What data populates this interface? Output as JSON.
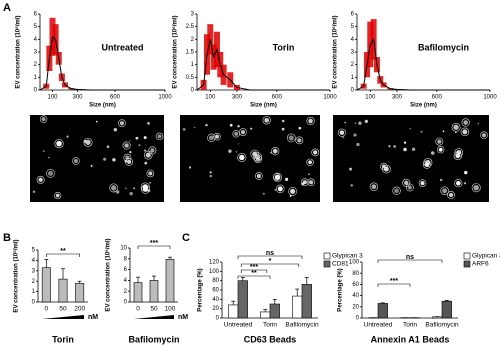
{
  "panel_labels": [
    "A",
    "B",
    "C"
  ],
  "chart_data": [
    {
      "type": "line",
      "title": "Untreated",
      "xlabel": "Size (nm)",
      "ylabel": "EV concentration (10⁶/ml)",
      "x": [
        0,
        50,
        75,
        100,
        125,
        150,
        175,
        200,
        250,
        300,
        400,
        500,
        600,
        800,
        1000
      ],
      "series": [
        {
          "color": "#000000",
          "error_color": "#e00000",
          "values": [
            0,
            0.3,
            2.5,
            4.2,
            4.0,
            2.5,
            1.0,
            0.4,
            0.1,
            0.05,
            0,
            0,
            0,
            0,
            0
          ],
          "errors": [
            0,
            0.2,
            1,
            1.5,
            1.2,
            0.5,
            0.3,
            0.2,
            0.05,
            0,
            0,
            0,
            0,
            0,
            0
          ]
        }
      ],
      "xlim": [
        0,
        1000
      ],
      "xticks": [
        100,
        300,
        600,
        1000
      ],
      "ylim": [
        0,
        6
      ],
      "yticks": [
        0,
        1,
        2,
        3,
        4,
        5,
        6
      ]
    },
    {
      "type": "line",
      "title": "Torin",
      "xlabel": "Size (nm)",
      "ylabel": "EV concentration (10⁶/ml)",
      "x": [
        0,
        50,
        75,
        100,
        125,
        150,
        175,
        200,
        250,
        300,
        400,
        500,
        600,
        800,
        1000
      ],
      "series": [
        {
          "color": "#000000",
          "error_color": "#e00000",
          "values": [
            0,
            0.2,
            1.4,
            2.0,
            1.3,
            1.6,
            1.0,
            0.6,
            0.4,
            0.1,
            0,
            0,
            0,
            0,
            0
          ],
          "errors": [
            0,
            0.2,
            0.8,
            0.6,
            0.5,
            0.7,
            0.5,
            0.4,
            0.3,
            0.1,
            0,
            0,
            0,
            0,
            0
          ]
        }
      ],
      "xlim": [
        0,
        1000
      ],
      "xticks": [
        100,
        300,
        600,
        1000
      ],
      "ylim": [
        0,
        3
      ],
      "yticks": [
        0,
        0.5,
        1,
        1.5,
        2,
        2.5,
        3
      ]
    },
    {
      "type": "line",
      "title": "Bafilomycin",
      "xlabel": "Size (nm)",
      "ylabel": "EV concentration (10⁶/ml)",
      "x": [
        0,
        50,
        75,
        100,
        125,
        150,
        175,
        200,
        250,
        300,
        400,
        500,
        600,
        800,
        1000
      ],
      "series": [
        {
          "color": "#000000",
          "error_color": "#e00000",
          "values": [
            0,
            0.3,
            2.0,
            3.6,
            4.0,
            2.0,
            0.8,
            0.4,
            0.1,
            0.05,
            0,
            0,
            0,
            0,
            0
          ],
          "errors": [
            0,
            0.2,
            1,
            1.8,
            1.6,
            0.6,
            0.3,
            0.2,
            0.05,
            0,
            0,
            0,
            0,
            0,
            0
          ]
        }
      ],
      "xlim": [
        0,
        1000
      ],
      "xticks": [
        100,
        300,
        600,
        1000
      ],
      "ylim": [
        0,
        6
      ],
      "yticks": [
        0,
        1,
        2,
        3,
        4,
        5,
        6
      ]
    },
    {
      "type": "bar",
      "title": "Torin",
      "xlabel": "nM",
      "ylabel": "EV concentration (10⁶/ml)",
      "categories": [
        "0",
        "50",
        "200"
      ],
      "values": [
        3.3,
        2.2,
        1.8
      ],
      "errors": [
        0.8,
        1.0,
        0.2
      ],
      "color": "#bbbbbb",
      "ylim": [
        0,
        5
      ],
      "yticks": [
        0,
        1,
        2,
        3,
        4,
        5
      ],
      "annotations": [
        "**"
      ]
    },
    {
      "type": "bar",
      "title": "Bafilomycin",
      "xlabel": "nM",
      "ylabel": "EV concentration (10⁶/ml)",
      "categories": [
        "0",
        "50",
        "100"
      ],
      "values": [
        3.6,
        4.0,
        7.9
      ],
      "errors": [
        1.0,
        0.8,
        0.4
      ],
      "color": "#bbbbbb",
      "ylim": [
        0,
        10
      ],
      "yticks": [
        0,
        2,
        4,
        6,
        8,
        10
      ],
      "annotations": [
        "***"
      ]
    },
    {
      "type": "bar",
      "title": "CD63 Beads",
      "ylabel": "Percentage (%)",
      "categories": [
        "Untreated",
        "Torin",
        "Bafilomycin"
      ],
      "series": [
        {
          "name": "Glypican 3",
          "color": "#ffffff",
          "values": [
            28,
            13,
            47
          ],
          "errors": [
            8,
            5,
            15
          ]
        },
        {
          "name": "CD81",
          "color": "#666666",
          "values": [
            80,
            30,
            72
          ],
          "errors": [
            7,
            10,
            15
          ]
        }
      ],
      "ylim": [
        0,
        120
      ],
      "yticks": [
        0,
        20,
        40,
        60,
        80,
        100,
        120
      ],
      "annotations": [
        "ns",
        "*",
        "***",
        "**"
      ]
    },
    {
      "type": "bar",
      "title": "Annexin A1 Beads",
      "ylabel": "Percentage (%)",
      "categories": [
        "Untreated",
        "Torin",
        "Bafilomycin"
      ],
      "series": [
        {
          "name": "Glypican 3",
          "color": "#ffffff",
          "values": [
            0.5,
            0.5,
            2
          ],
          "errors": [
            0,
            0,
            0.5
          ]
        },
        {
          "name": "ARF6",
          "color": "#555555",
          "values": [
            26,
            0.5,
            30
          ],
          "errors": [
            1,
            0,
            1.5
          ]
        }
      ],
      "ylim": [
        0,
        100
      ],
      "yticks": [
        0,
        20,
        40,
        60,
        80,
        100
      ],
      "annotations": [
        "ns",
        "***"
      ]
    }
  ]
}
